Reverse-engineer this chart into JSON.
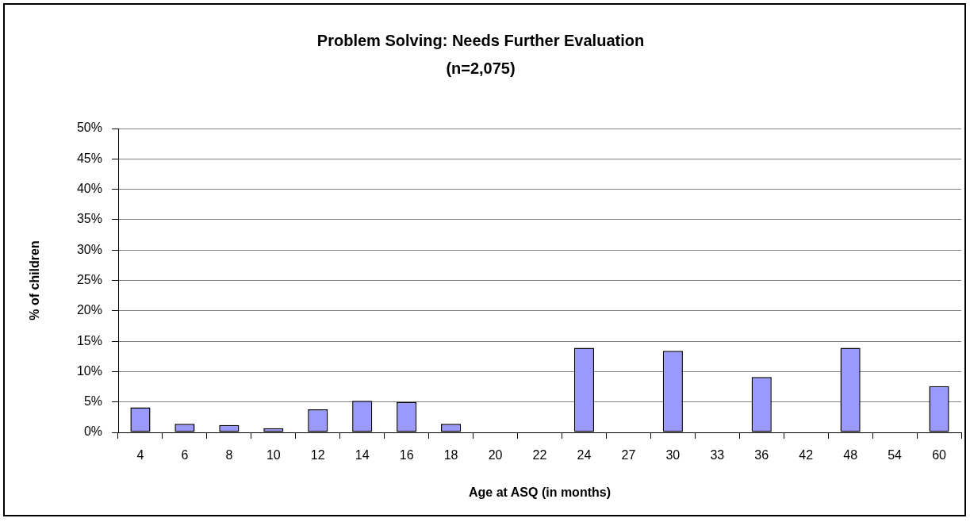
{
  "chart_data": {
    "type": "bar",
    "title": "Problem Solving: Needs Further Evaluation",
    "subtitle": "(n=2,075)",
    "xlabel": "Age at ASQ (in months)",
    "ylabel": "% of children",
    "categories": [
      "4",
      "6",
      "8",
      "10",
      "12",
      "14",
      "16",
      "18",
      "20",
      "22",
      "24",
      "27",
      "30",
      "33",
      "36",
      "42",
      "48",
      "54",
      "60"
    ],
    "values": [
      4.1,
      1.4,
      1.2,
      0.7,
      3.8,
      5.2,
      5.0,
      1.4,
      null,
      null,
      13.9,
      null,
      13.4,
      null,
      9.1,
      null,
      13.9,
      null,
      7.6
    ],
    "color": "#9999ff",
    "ylim": [
      0,
      50
    ],
    "yticks": [
      {
        "value": 0,
        "label": "0%"
      },
      {
        "value": 5,
        "label": "5%"
      },
      {
        "value": 10,
        "label": "10%"
      },
      {
        "value": 15,
        "label": "15%"
      },
      {
        "value": 20,
        "label": "20%"
      },
      {
        "value": 25,
        "label": "25%"
      },
      {
        "value": 30,
        "label": "30%"
      },
      {
        "value": 35,
        "label": "35%"
      },
      {
        "value": 40,
        "label": "40%"
      },
      {
        "value": 45,
        "label": "45%"
      },
      {
        "value": 50,
        "label": "50%"
      }
    ],
    "grid": "y"
  }
}
